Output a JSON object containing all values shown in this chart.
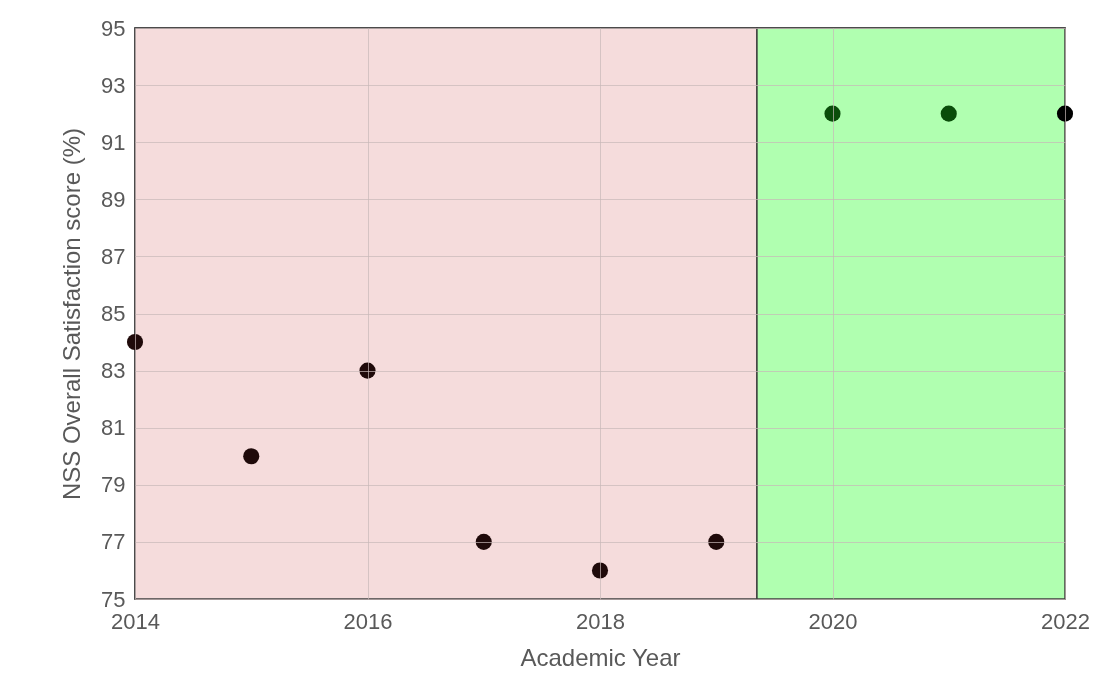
{
  "chart_data": {
    "type": "scatter",
    "xlabel": "Academic Year",
    "ylabel": "NSS Overall Satisfaction score (%)",
    "x": [
      2014,
      2015,
      2016,
      2017,
      2018,
      2019,
      2020,
      2021,
      2022
    ],
    "values": [
      84,
      80,
      83,
      77,
      76,
      77,
      92,
      92,
      92
    ],
    "colors": [
      "#1f0a0a",
      "#1f0a0a",
      "#1f0a0a",
      "#1f0a0a",
      "#1f0a0a",
      "#1f0a0a",
      "#0a4d0a",
      "#0a4d0a",
      "#000000"
    ],
    "xlim": [
      2014,
      2022
    ],
    "xticks": [
      2014,
      2016,
      2018,
      2020,
      2022
    ],
    "ylim": [
      75,
      95
    ],
    "yticks": [
      75,
      77,
      79,
      81,
      83,
      85,
      87,
      89,
      91,
      93,
      95
    ],
    "grid": true,
    "marker": "circle",
    "bands": [
      {
        "axis": "x",
        "from": 2014,
        "to": 2019.35,
        "color": "#f5dcdc"
      },
      {
        "axis": "x",
        "from": 2019.35,
        "to": 2022,
        "color": "#b0ffb0"
      }
    ]
  }
}
